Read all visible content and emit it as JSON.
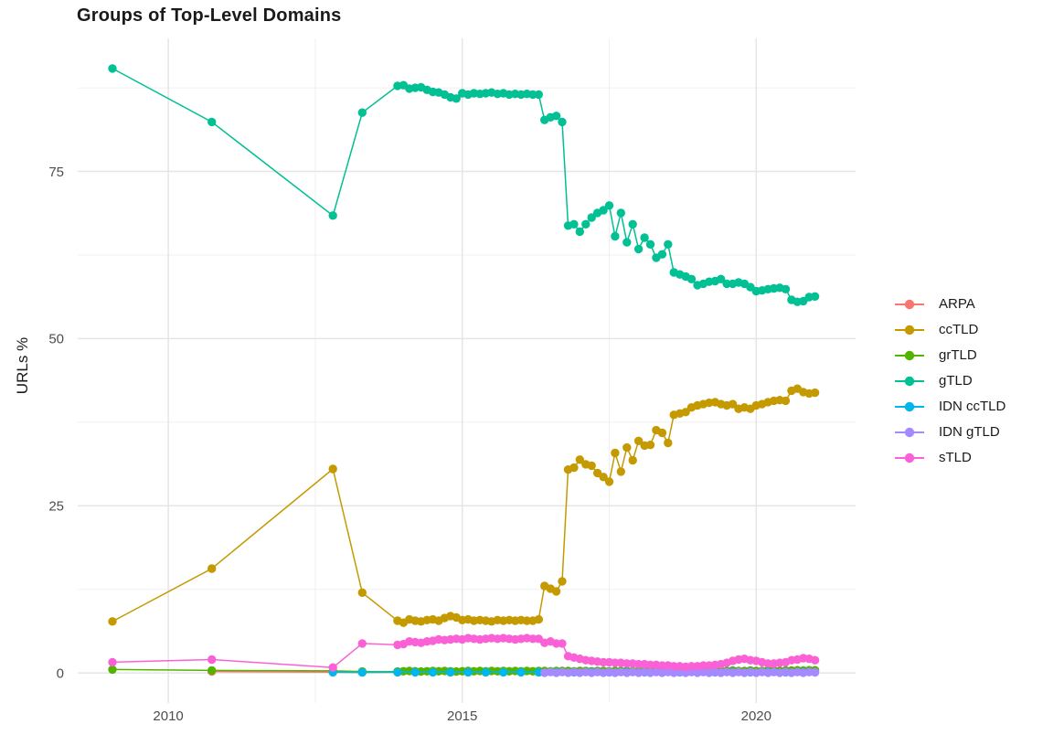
{
  "chart_data": {
    "type": "line",
    "title": "Groups of Top-Level Domains",
    "xlabel": "",
    "ylabel": "URLs %",
    "xlim": [
      2008.46,
      2021.69
    ],
    "ylim": [
      -4.5,
      94.9
    ],
    "x_ticks": [
      2010,
      2015,
      2020
    ],
    "x_tick_labels": [
      "2010",
      "2015",
      "2020"
    ],
    "x_minor_ticks": [
      2012.5,
      2017.5
    ],
    "y_ticks": [
      0,
      25,
      50,
      75
    ],
    "y_tick_labels": [
      "0",
      "25",
      "50",
      "75"
    ],
    "y_minor_ticks": [
      12.5,
      37.5,
      62.5,
      87.5
    ],
    "grid": true,
    "legend_position": "right",
    "colors": {
      "background": "#FFFFFF",
      "grid_major": "#E5E5E5",
      "grid_minor": "#F0F0F0",
      "tick_label": "#4D4D4D",
      "text": "#1A1A1A"
    },
    "series": [
      {
        "name": "ARPA",
        "color": "#F8766D",
        "points": [
          [
            2010.74,
            0.2
          ],
          [
            2012.8,
            0.12
          ],
          [
            2013.3,
            0.1
          ]
        ],
        "dense_start": 2013.9,
        "dense_step": 0.3,
        "dense_values": [
          0.15,
          0.15,
          0.15,
          0.15,
          0.15,
          0.15,
          0.15,
          0.15,
          0.15,
          0.15,
          0.15,
          0.15,
          0.15,
          0.15,
          0.15,
          0.15,
          0.15,
          0.15,
          0.15,
          0.15,
          0.15,
          0.15,
          0.15,
          0.15
        ]
      },
      {
        "name": "ccTLD",
        "color": "#C49A00",
        "points": [
          [
            2009.05,
            7.7
          ],
          [
            2010.74,
            15.6
          ],
          [
            2012.8,
            30.5
          ],
          [
            2013.3,
            12.0
          ]
        ],
        "dense_start": 2013.9,
        "dense_step": 0.1,
        "dense_values": [
          7.8,
          7.5,
          8.0,
          7.8,
          7.7,
          7.9,
          8.0,
          7.8,
          8.2,
          8.5,
          8.3,
          7.9,
          8.0,
          7.8,
          7.9,
          7.8,
          7.7,
          7.9,
          7.8,
          7.9,
          7.8,
          7.9,
          7.8,
          7.8,
          8.0,
          13.0,
          12.6,
          12.2,
          13.7,
          30.4,
          30.7,
          31.9,
          31.2,
          31.0,
          29.9,
          29.3,
          28.6,
          32.9,
          30.1,
          33.7,
          31.8,
          34.7,
          34.0,
          34.1,
          36.3,
          35.9,
          34.4,
          38.6,
          38.8,
          39.0,
          39.7,
          40.0,
          40.2,
          40.4,
          40.5,
          40.2,
          40.0,
          40.2,
          39.5,
          39.7,
          39.5,
          40.0,
          40.2,
          40.5,
          40.7,
          40.8,
          40.7,
          42.2,
          42.5,
          42.0,
          41.8,
          41.9
        ]
      },
      {
        "name": "grTLD",
        "color": "#53B400",
        "points": [
          [
            2009.05,
            0.5
          ],
          [
            2010.74,
            0.37
          ],
          [
            2012.8,
            0.3
          ],
          [
            2013.3,
            0.2
          ]
        ],
        "dense_start": 2013.9,
        "dense_step": 0.1,
        "dense_values": [
          0.2,
          0.25,
          0.3,
          0.25,
          0.2,
          0.25,
          0.3,
          0.25,
          0.3,
          0.25,
          0.2,
          0.25,
          0.3,
          0.25,
          0.3,
          0.25,
          0.3,
          0.25,
          0.3,
          0.25,
          0.3,
          0.25,
          0.3,
          0.25,
          0.3,
          0.3,
          0.25,
          0.3,
          0.3,
          0.3,
          0.25,
          0.3,
          0.3,
          0.25,
          0.3,
          0.3,
          0.25,
          0.3,
          0.3,
          0.3,
          0.25,
          0.3,
          0.3,
          0.25,
          0.3,
          0.3,
          0.3,
          0.25,
          0.3,
          0.3,
          0.3,
          0.3,
          0.25,
          0.3,
          0.3,
          0.3,
          0.3,
          0.35,
          0.3,
          0.3,
          0.35,
          0.3,
          0.3,
          0.35,
          0.35,
          0.3,
          0.35,
          0.35,
          0.4,
          0.35,
          0.4,
          0.4
        ]
      },
      {
        "name": "gTLD",
        "color": "#00C094",
        "points": [
          [
            2009.05,
            90.4
          ],
          [
            2010.74,
            82.4
          ],
          [
            2012.8,
            68.4
          ],
          [
            2013.3,
            83.8
          ]
        ],
        "dense_start": 2013.9,
        "dense_step": 0.1,
        "dense_values": [
          87.8,
          87.9,
          87.4,
          87.5,
          87.6,
          87.2,
          86.9,
          86.8,
          86.5,
          86.1,
          85.9,
          86.7,
          86.5,
          86.7,
          86.6,
          86.7,
          86.8,
          86.6,
          86.7,
          86.5,
          86.6,
          86.5,
          86.6,
          86.5,
          86.5,
          82.7,
          83.1,
          83.3,
          82.4,
          66.9,
          67.1,
          66.0,
          67.1,
          68.1,
          68.8,
          69.2,
          69.9,
          65.3,
          68.8,
          64.4,
          67.1,
          63.4,
          65.1,
          64.1,
          62.1,
          62.6,
          64.1,
          59.9,
          59.6,
          59.3,
          58.9,
          58.0,
          58.2,
          58.5,
          58.6,
          58.9,
          58.2,
          58.2,
          58.4,
          58.2,
          57.7,
          57.1,
          57.2,
          57.4,
          57.5,
          57.6,
          57.4,
          55.8,
          55.5,
          55.6,
          56.2,
          56.3
        ]
      },
      {
        "name": "IDN ccTLD",
        "color": "#00B6EB",
        "points": [
          [
            2012.8,
            0.1
          ],
          [
            2013.3,
            0.06
          ]
        ],
        "dense_start": 2013.9,
        "dense_step": 0.3,
        "dense_values": [
          0.1,
          0.1,
          0.1,
          0.1,
          0.1,
          0.1,
          0.1,
          0.1,
          0.1,
          0.1,
          0.1,
          0.1,
          0.1,
          0.1,
          0.1,
          0.1,
          0.1,
          0.1,
          0.1,
          0.1,
          0.1,
          0.1,
          0.1,
          0.1
        ]
      },
      {
        "name": "IDN gTLD",
        "color": "#A58AFF",
        "points": [],
        "dense_start": 2016.4,
        "dense_step": 0.1,
        "dense_values": [
          0.02,
          0.12,
          0.02,
          0.12,
          0.02,
          0.12,
          0.02,
          0.12,
          0.02,
          0.12,
          0.02,
          0.12,
          0.02,
          0.12,
          0.02,
          0.12,
          0.02,
          0.12,
          0.02,
          0.12,
          0.02,
          0.12,
          0.02,
          0.12,
          0.02,
          0.12,
          0.02,
          0.12,
          0.02,
          0.12,
          0.02,
          0.12,
          0.02,
          0.12,
          0.02,
          0.12,
          0.02,
          0.12,
          0.02,
          0.12,
          0.02,
          0.12,
          0.02,
          0.12,
          0.02,
          0.12,
          0.08
        ]
      },
      {
        "name": "sTLD",
        "color": "#FB61D7",
        "points": [
          [
            2009.05,
            1.6
          ],
          [
            2010.74,
            2.0
          ],
          [
            2012.8,
            0.8
          ],
          [
            2013.3,
            4.4
          ]
        ],
        "dense_start": 2013.9,
        "dense_step": 0.1,
        "dense_values": [
          4.2,
          4.3,
          4.7,
          4.6,
          4.5,
          4.7,
          4.8,
          5.0,
          4.9,
          5.0,
          5.1,
          5.0,
          5.2,
          5.1,
          5.0,
          5.1,
          5.2,
          5.1,
          5.2,
          5.1,
          5.0,
          5.1,
          5.2,
          5.1,
          5.1,
          4.5,
          4.7,
          4.4,
          4.4,
          2.5,
          2.3,
          2.1,
          1.9,
          1.8,
          1.7,
          1.6,
          1.6,
          1.5,
          1.5,
          1.4,
          1.4,
          1.3,
          1.3,
          1.2,
          1.2,
          1.1,
          1.1,
          1.0,
          1.0,
          0.9,
          1.0,
          1.0,
          1.1,
          1.1,
          1.2,
          1.3,
          1.5,
          1.8,
          2.0,
          2.1,
          1.9,
          1.8,
          1.6,
          1.4,
          1.4,
          1.5,
          1.6,
          1.9,
          2.0,
          2.2,
          2.1,
          1.9
        ]
      }
    ]
  }
}
